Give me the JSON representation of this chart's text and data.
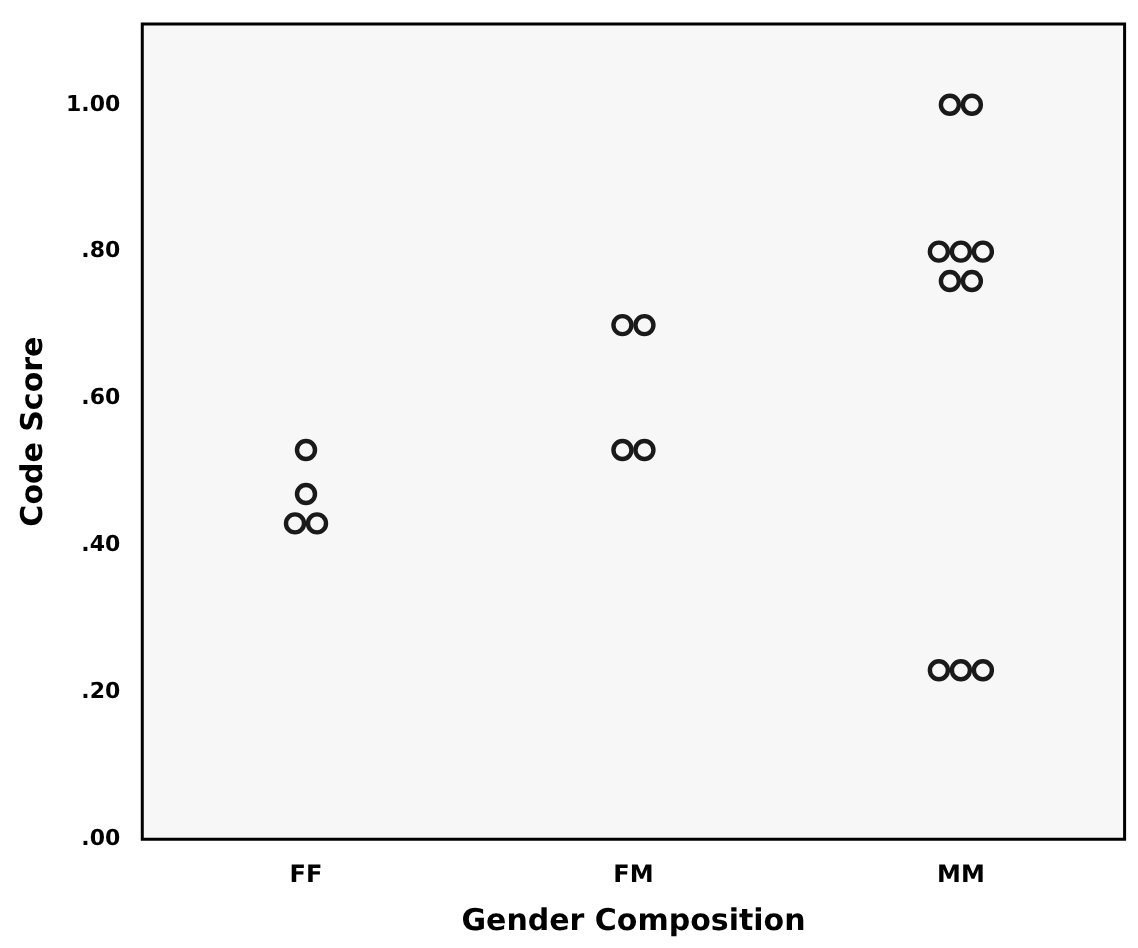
{
  "chart_data": {
    "type": "scatter",
    "xlabel": "Gender Composition",
    "ylabel": "Code Score",
    "categories": [
      "FF",
      "FM",
      "MM"
    ],
    "series": [
      {
        "color": "#1a1a1a",
        "x": [
          "FF",
          "FF",
          "FF",
          "FF",
          "FM",
          "FM",
          "FM",
          "FM",
          "MM",
          "MM",
          "MM",
          "MM",
          "MM",
          "MM",
          "MM",
          "MM",
          "MM",
          "MM"
        ],
        "values": [
          0.53,
          0.47,
          0.43,
          0.43,
          0.7,
          0.7,
          0.53,
          0.53,
          1.0,
          1.0,
          0.8,
          0.8,
          0.8,
          0.76,
          0.76,
          0.23,
          0.23,
          0.23
        ]
      }
    ],
    "ylim": [
      0,
      1.11
    ],
    "yticks": [
      {
        "value": 0,
        "label": ".00"
      },
      {
        "value": 0.2,
        "label": ".20"
      },
      {
        "value": 0.4,
        "label": ".40"
      },
      {
        "value": 0.6,
        "label": ".60"
      },
      {
        "value": 0.8,
        "label": ".80"
      },
      {
        "value": 1,
        "label": "1.00"
      }
    ],
    "grid": false,
    "legend": false,
    "marker": "circle"
  }
}
